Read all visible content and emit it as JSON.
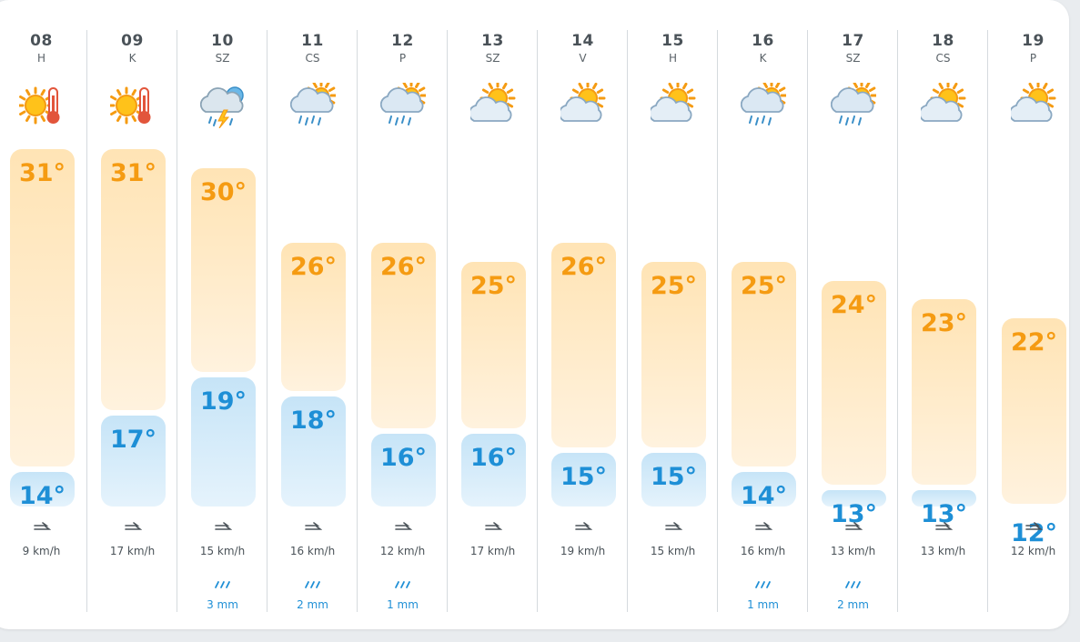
{
  "forecast": {
    "days": [
      {
        "day": "08",
        "abbr": "H",
        "high": "31°",
        "low": "14°",
        "high_val": 31,
        "low_val": 14,
        "icon": "hot-sun-icon",
        "wind": "9 km/h",
        "rain": ""
      },
      {
        "day": "09",
        "abbr": "K",
        "high": "31°",
        "low": "17°",
        "high_val": 31,
        "low_val": 17,
        "icon": "hot-sun-icon",
        "wind": "17 km/h",
        "rain": ""
      },
      {
        "day": "10",
        "abbr": "SZ",
        "high": "30°",
        "low": "19°",
        "high_val": 30,
        "low_val": 19,
        "icon": "thunderstorm-icon",
        "wind": "15 km/h",
        "rain": "3 mm"
      },
      {
        "day": "11",
        "abbr": "CS",
        "high": "26°",
        "low": "18°",
        "high_val": 26,
        "low_val": 18,
        "icon": "sun-rain-icon",
        "wind": "16 km/h",
        "rain": "2 mm"
      },
      {
        "day": "12",
        "abbr": "P",
        "high": "26°",
        "low": "16°",
        "high_val": 26,
        "low_val": 16,
        "icon": "sun-rain-icon",
        "wind": "12 km/h",
        "rain": "1 mm"
      },
      {
        "day": "13",
        "abbr": "SZ",
        "high": "25°",
        "low": "16°",
        "high_val": 25,
        "low_val": 16,
        "icon": "partly-cloudy-icon",
        "wind": "17 km/h",
        "rain": ""
      },
      {
        "day": "14",
        "abbr": "V",
        "high": "26°",
        "low": "15°",
        "high_val": 26,
        "low_val": 15,
        "icon": "partly-cloudy-icon",
        "wind": "19 km/h",
        "rain": ""
      },
      {
        "day": "15",
        "abbr": "H",
        "high": "25°",
        "low": "15°",
        "high_val": 25,
        "low_val": 15,
        "icon": "partly-cloudy-icon",
        "wind": "15 km/h",
        "rain": ""
      },
      {
        "day": "16",
        "abbr": "K",
        "high": "25°",
        "low": "14°",
        "high_val": 25,
        "low_val": 14,
        "icon": "sun-rain-icon",
        "wind": "16 km/h",
        "rain": "1 mm"
      },
      {
        "day": "17",
        "abbr": "SZ",
        "high": "24°",
        "low": "13°",
        "high_val": 24,
        "low_val": 13,
        "icon": "sun-rain-icon",
        "wind": "13 km/h",
        "rain": "2 mm"
      },
      {
        "day": "18",
        "abbr": "CS",
        "high": "23°",
        "low": "13°",
        "high_val": 23,
        "low_val": 13,
        "icon": "partly-cloudy-icon",
        "wind": "13 km/h",
        "rain": ""
      },
      {
        "day": "19",
        "abbr": "P",
        "high": "22°",
        "low": "12°",
        "high_val": 22,
        "low_val": 12,
        "icon": "partly-cloudy-icon",
        "wind": "12 km/h",
        "rain": ""
      }
    ]
  },
  "colors": {
    "high_text": "#f59b12",
    "low_text": "#1e8fd6",
    "separator": "#d5dade"
  }
}
